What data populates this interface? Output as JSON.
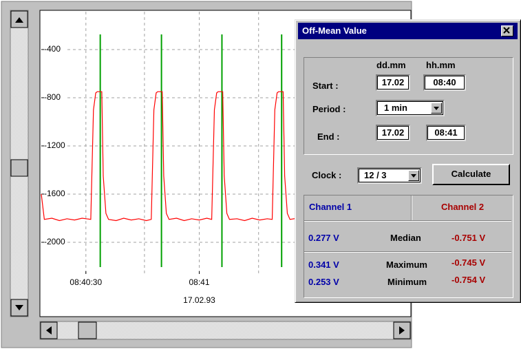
{
  "chart_data": {
    "type": "line",
    "ylim": [
      -2263,
      -86
    ],
    "yticks": [
      -400,
      -800,
      -1200,
      -1600,
      -2000
    ],
    "xlim": [
      31218.2,
      31316
    ],
    "xticks": [
      {
        "value": 31230,
        "label": "08:40:30"
      },
      {
        "value": 31260,
        "label": "08:41"
      }
    ],
    "xgrid": [
      31230,
      31245.5,
      31260,
      31275.7
    ],
    "date_label": "17.02.93",
    "grid": true,
    "series": [
      {
        "color": "#ff0000",
        "x": [
          31218.2,
          31219,
          31221,
          31223,
          31225,
          31227,
          31229,
          31231.3,
          31232,
          31232.6,
          31233,
          31234.2,
          31234.6,
          31235.3,
          31236,
          31238,
          31240,
          31242,
          31244,
          31246,
          31247.3,
          31248,
          31248.6,
          31249,
          31250.2,
          31250.6,
          31251.3,
          31252,
          31254,
          31256,
          31258,
          31260,
          31262,
          31263.3,
          31264,
          31264.6,
          31265,
          31266.2,
          31266.6,
          31267.3,
          31268,
          31270,
          31272,
          31274,
          31276,
          31278,
          31279.3,
          31280,
          31280.6,
          31281,
          31282.2,
          31282.6,
          31283.3,
          31284,
          31286
        ],
        "values": [
          -1600,
          -1810,
          -1800,
          -1820,
          -1805,
          -1815,
          -1800,
          -1810,
          -900,
          -760,
          -750,
          -750,
          -1450,
          -1760,
          -1810,
          -1820,
          -1800,
          -1815,
          -1805,
          -1820,
          -1810,
          -900,
          -760,
          -750,
          -750,
          -1450,
          -1760,
          -1810,
          -1800,
          -1820,
          -1805,
          -1815,
          -1800,
          -1810,
          -900,
          -760,
          -750,
          -750,
          -1450,
          -1760,
          -1810,
          -1805,
          -1820,
          -1800,
          -1815,
          -1805,
          -1810,
          -900,
          -760,
          -750,
          -750,
          -1450,
          -1760,
          -1810,
          -1800
        ]
      }
    ],
    "cursors": {
      "color": "#00a000",
      "x": [
        31233.8,
        31250,
        31266,
        31281.8
      ]
    }
  },
  "dialog": {
    "title": "Off-Mean Value",
    "col_day": "dd.mm",
    "col_time": "hh.mm",
    "start_label": "Start :",
    "start_day": "17.02",
    "start_time": "08:40",
    "period_label": "Period :",
    "period": "1 min",
    "end_label": "End :",
    "end_day": "17.02",
    "end_time": "08:41",
    "clock_label": "Clock :",
    "clock": "12 / 3",
    "calculate": "Calculate",
    "channel1": "Channel 1",
    "channel2": "Channel 2",
    "rows": [
      {
        "c1": "0.277 V",
        "label": "Median",
        "c2": "-0.751 V"
      },
      {
        "c1": "0.341 V",
        "label": "Maximum",
        "c2": "-0.745 V"
      },
      {
        "c1": "0.253 V",
        "label": "Minimum",
        "c2": "-0.754 V"
      }
    ]
  }
}
